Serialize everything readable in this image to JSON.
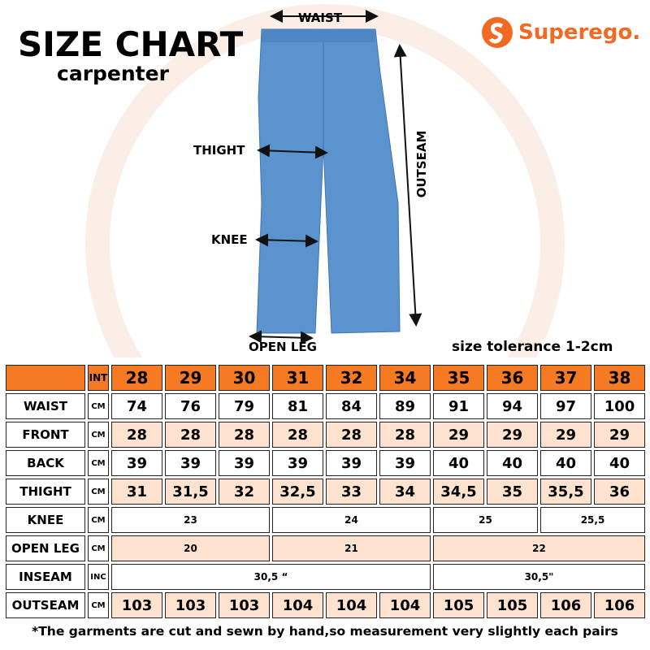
{
  "header": {
    "title": "SIZE CHART",
    "subtitle": "carpenter"
  },
  "logo": {
    "text": "Superego."
  },
  "labels": {
    "waist": "WAIST",
    "thigh": "THIGHT",
    "knee": "KNEE",
    "outseam": "OUTSEAM",
    "open_leg": "OPEN LEG"
  },
  "tolerance": "size tolerance 1-2cm",
  "table": {
    "header": {
      "unit": "INT",
      "sizes": [
        "28",
        "29",
        "30",
        "31",
        "32",
        "34",
        "35",
        "36",
        "37",
        "38"
      ]
    },
    "rows": [
      {
        "label": "WAIST",
        "unit": "CM",
        "cells": [
          "74",
          "76",
          "79",
          "81",
          "84",
          "89",
          "91",
          "94",
          "97",
          "100"
        ]
      },
      {
        "label": "FRONT",
        "unit": "CM",
        "cells": [
          "28",
          "28",
          "28",
          "28",
          "28",
          "28",
          "29",
          "29",
          "29",
          "29"
        ]
      },
      {
        "label": "BACK",
        "unit": "CM",
        "cells": [
          "39",
          "39",
          "39",
          "39",
          "39",
          "39",
          "40",
          "40",
          "40",
          "40"
        ]
      },
      {
        "label": "THIGHT",
        "unit": "CM",
        "cells": [
          "31",
          "31,5",
          "32",
          "32,5",
          "33",
          "34",
          "34,5",
          "35",
          "35,5",
          "36"
        ]
      },
      {
        "label": "KNEE",
        "unit": "CM",
        "cells": [
          "23",
          "24",
          "25",
          "25,5"
        ]
      },
      {
        "label": "OPEN LEG",
        "unit": "CM",
        "cells": [
          "20",
          "21",
          "22"
        ]
      },
      {
        "label": "INSEAM",
        "unit": "INC",
        "cells": [
          "30,5 “",
          "30,5\""
        ]
      },
      {
        "label": "OUTSEAM",
        "unit": "CM",
        "cells": [
          "103",
          "103",
          "103",
          "104",
          "104",
          "104",
          "105",
          "105",
          "106",
          "106"
        ]
      }
    ]
  },
  "footer": "*The garments are cut and sewn by hand,so measurement very slightly each pairs"
}
